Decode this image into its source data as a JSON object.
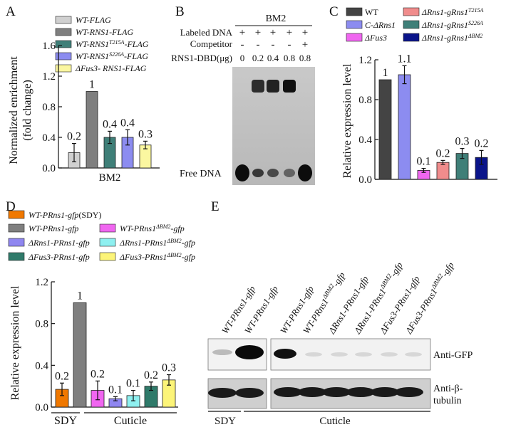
{
  "panels": {
    "A": {
      "letter": "A"
    },
    "B": {
      "letter": "B"
    },
    "C": {
      "letter": "C"
    },
    "D": {
      "letter": "D"
    },
    "E": {
      "letter": "E"
    }
  },
  "colors": {
    "light_gray": "#d0d0d0",
    "dark_gray": "#7f7f7f",
    "teal": "#3f7f78",
    "periwinkle": "#8c8cf0",
    "light_yellow": "#fbf7a0",
    "near_black": "#444444",
    "salmon": "#f08c8c",
    "magenta": "#f066f0",
    "navy": "#0a148a",
    "orange": "#f07800",
    "violet": "#d07ae8",
    "lavender": "#8f86f0",
    "cyan": "#8ef0f0",
    "green": "#2f7a6a",
    "yellow": "#fcf478"
  },
  "chart_data": [
    {
      "panel": "A",
      "type": "bar",
      "ylabel": "Normalized enrichment (fold change)",
      "ylabel_line1": "Normalized enrichment",
      "ylabel_line2": "(fold change)",
      "xlabel": "BM2",
      "ylim": [
        0,
        1.6
      ],
      "yticks": [
        "0.0",
        "0.4",
        "0.8",
        "1.2",
        "1.6"
      ],
      "series": [
        {
          "name": "WT-FLAG",
          "value": 0.2,
          "label": "0.2",
          "error": 0.12,
          "color": "#d0d0d0"
        },
        {
          "name": "WT-RNS1-FLAG",
          "value": 1.0,
          "label": "1",
          "error": 0.0,
          "color": "#7f7f7f"
        },
        {
          "name": "WT-RNS1T215A-FLAG",
          "value": 0.4,
          "label": "0.4",
          "error": 0.08,
          "color": "#3f7f78"
        },
        {
          "name": "WT-RNS1S226A-FLAG",
          "value": 0.4,
          "label": "0.4",
          "error": 0.1,
          "color": "#8c8cf0"
        },
        {
          "name": "ΔFus3- RNS1-FLAG",
          "value": 0.3,
          "label": "0.3",
          "error": 0.05,
          "color": "#fbf7a0"
        }
      ],
      "legend": [
        {
          "pre": "WT-FLAG",
          "sup": "",
          "post": ""
        },
        {
          "pre": "WT-RNS1-FLAG",
          "sup": "",
          "post": ""
        },
        {
          "pre": "WT-RNS1",
          "sup": "T215A",
          "post": "-FLAG"
        },
        {
          "pre": "WT-RNS1",
          "sup": "S226A",
          "post": "-FLAG"
        },
        {
          "pre": "ΔFus3- RNS1-FLAG",
          "sup": "",
          "post": ""
        }
      ]
    },
    {
      "panel": "C",
      "type": "bar",
      "ylabel": "Relative expression level",
      "ylim": [
        0,
        1.2
      ],
      "yticks": [
        "0.0",
        "0.4",
        "0.8",
        "1.2"
      ],
      "series": [
        {
          "name": "WT",
          "value": 1.0,
          "label": "1",
          "error": 0.0,
          "color": "#444444"
        },
        {
          "name": "C-ΔRns1",
          "value": 1.05,
          "label": "1.1",
          "error": 0.09,
          "color": "#8c8cf0"
        },
        {
          "name": "ΔFus3",
          "value": 0.09,
          "label": "0.1",
          "error": 0.02,
          "color": "#f066f0"
        },
        {
          "name": "ΔRns1-gRns1T215A",
          "value": 0.17,
          "label": "0.2",
          "error": 0.02,
          "color": "#f08c8c"
        },
        {
          "name": "ΔRns1-gRns1S226A",
          "value": 0.26,
          "label": "0.3",
          "error": 0.05,
          "color": "#3f7f78"
        },
        {
          "name": "ΔRns1-gRns1ΔBM2",
          "value": 0.22,
          "label": "0.2",
          "error": 0.07,
          "color": "#0a148a"
        }
      ],
      "legend": [
        {
          "pre": "WT",
          "sup": "",
          "italic": false
        },
        {
          "pre": "ΔRns1-gRns1",
          "sup": "T215A",
          "italic": true
        },
        {
          "pre": "C-ΔRns1",
          "sup": "",
          "italic": true
        },
        {
          "pre": "ΔRns1-gRns1",
          "sup": "S226A",
          "italic": true
        },
        {
          "pre": "ΔFus3",
          "sup": "",
          "italic": true
        },
        {
          "pre": "ΔRns1-gRns1",
          "sup": "ΔBM2",
          "italic": true
        }
      ]
    },
    {
      "panel": "D",
      "type": "bar",
      "ylabel": "Relative expression level",
      "ylim": [
        0,
        1.2
      ],
      "yticks": [
        "0.0",
        "0.4",
        "0.8",
        "1.2"
      ],
      "groups": [
        "SDY",
        "Cuticle"
      ],
      "series": [
        {
          "name": "WT-PRns1-gfp(SDY)",
          "value": 0.17,
          "label": "0.2",
          "error": 0.06,
          "color": "#f07800",
          "group": "SDY"
        },
        {
          "name": "WT-PRns1-gfp",
          "value": 1.0,
          "label": "1",
          "error": 0.0,
          "color": "#7f7f7f",
          "group": "SDY"
        },
        {
          "name": "WT-PRns1ΔBM2-gfp",
          "value": 0.16,
          "label": "0.2",
          "error": 0.09,
          "color": "#f066f0",
          "group": "Cuticle"
        },
        {
          "name": "ΔRns1-PRns1-gfp",
          "value": 0.08,
          "label": "0.1",
          "error": 0.02,
          "color": "#8f86f0",
          "group": "Cuticle"
        },
        {
          "name": "ΔRns1-PRns1ΔBM2-gfp",
          "value": 0.11,
          "label": "0.1",
          "error": 0.05,
          "color": "#8ef0f0",
          "group": "Cuticle"
        },
        {
          "name": "ΔFus3-PRns1-gfp",
          "value": 0.2,
          "label": "0.2",
          "error": 0.04,
          "color": "#2f7a6a",
          "group": "Cuticle"
        },
        {
          "name": "ΔFus3-PRns1ΔBM2-gfp",
          "value": 0.26,
          "label": "0.3",
          "error": 0.05,
          "color": "#fcf478",
          "group": "Cuticle"
        }
      ],
      "legend": [
        {
          "pre": "WT-PRns1-gfp",
          "sup": "",
          "post": "",
          "extra": "(SDY)"
        },
        {
          "pre": "WT-PRns1-gfp",
          "sup": "",
          "post": "",
          "extra": ""
        },
        {
          "pre": "WT-PRns1",
          "sup": "ΔBM2",
          "post": "-gfp",
          "extra": ""
        },
        {
          "pre": "ΔRns1-PRns1-gfp",
          "sup": "",
          "post": "",
          "extra": ""
        },
        {
          "pre": "ΔRns1-PRns1",
          "sup": "ΔBM2",
          "post": "-gfp",
          "extra": ""
        },
        {
          "pre": "ΔFus3-PRns1-gfp",
          "sup": "",
          "post": "",
          "extra": ""
        },
        {
          "pre": "ΔFus3-PRns1",
          "sup": "ΔBM2",
          "post": "-gfp",
          "extra": ""
        }
      ]
    }
  ],
  "panel_b": {
    "title": "BM2",
    "row_labeled": "Labeled DNA",
    "row_competitor": "Competitor",
    "row_protein": "RNS1-DBD(μg)",
    "labeled_marks": [
      "+",
      "+",
      "+",
      "+",
      "+"
    ],
    "competitor_marks": [
      "-",
      "-",
      "-",
      "-",
      "+"
    ],
    "protein_amounts": [
      "0",
      "0.2",
      "0.4",
      "0.8",
      "0.8"
    ],
    "free_dna": "Free DNA"
  },
  "panel_e": {
    "lanes": [
      {
        "pre": "WT-PRns1-gfp",
        "sup": ""
      },
      {
        "pre": "WT-PRns1-gfp",
        "sup": ""
      },
      {
        "pre": "WT-PRns1-gfp",
        "sup": ""
      },
      {
        "pre": "WT-PRns1",
        "sup": "ΔBM2",
        "post": "-gfp"
      },
      {
        "pre": "ΔRns1-PRns1-gfp",
        "sup": ""
      },
      {
        "pre": "ΔRns1-PRns1",
        "sup": "ΔBM2",
        "post": "-gfp"
      },
      {
        "pre": "ΔFus3-PRns1-gfp",
        "sup": ""
      },
      {
        "pre": "ΔFus3-PRns1",
        "sup": "ΔBM2",
        "post": "-gfp"
      }
    ],
    "anti_gfp": "Anti-GFP",
    "anti_tubulin_line1": "Anti-β-",
    "anti_tubulin_line2": "tubulin",
    "group_sdy": "SDY",
    "group_cuticle": "Cuticle"
  }
}
